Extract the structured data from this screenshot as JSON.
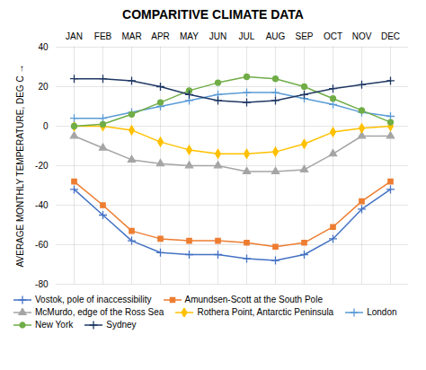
{
  "chart_data": {
    "type": "line",
    "title": "COMPARITIVE CLIMATE DATA",
    "y_label": "AVERAGE MONTHLY TEMPERATURE, DEG C",
    "categories": [
      "JAN",
      "FEB",
      "MAR",
      "APR",
      "MAY",
      "JUN",
      "JUL",
      "AUG",
      "SEP",
      "OCT",
      "NOV",
      "DEC"
    ],
    "series": [
      {
        "name": "Vostok, pole of inaccessibility",
        "color": "#4472C4",
        "marker": "plus",
        "values": [
          -32,
          -45,
          -58,
          -64,
          -65,
          -65,
          -67,
          -68,
          -65,
          -57,
          -42,
          -32
        ]
      },
      {
        "name": "Amundsen-Scott at the South Pole",
        "color": "#ED7D31",
        "marker": "square",
        "values": [
          -28,
          -40,
          -53,
          -57,
          -58,
          -58,
          -59,
          -61,
          -59,
          -51,
          -38,
          -28
        ]
      },
      {
        "name": "McMurdo, edge of the Ross Sea",
        "color": "#A5A5A5",
        "marker": "triangle",
        "values": [
          -5,
          -11,
          -17,
          -19,
          -20,
          -20,
          -23,
          -23,
          -22,
          -14,
          -5,
          -5
        ]
      },
      {
        "name": "Rothera Point, Antarctic Peninsula",
        "color": "#FFC000",
        "marker": "diamond",
        "values": [
          0,
          0,
          -2,
          -8,
          -12,
          -14,
          -14,
          -13,
          -9,
          -3,
          -1,
          0
        ]
      },
      {
        "name": "London",
        "color": "#5B9BD5",
        "marker": "plus",
        "values": [
          4,
          4,
          7,
          10,
          13,
          16,
          17,
          17,
          14,
          11,
          7,
          5
        ]
      },
      {
        "name": "New York",
        "color": "#70AD47",
        "marker": "circle",
        "values": [
          0,
          1,
          6,
          12,
          18,
          22,
          25,
          24,
          20,
          14,
          8,
          2
        ]
      },
      {
        "name": "Sydney",
        "color": "#1F3864",
        "marker": "plus",
        "values": [
          24,
          24,
          23,
          20,
          16,
          13,
          12,
          13,
          16,
          19,
          21,
          23
        ]
      }
    ],
    "ylim": [
      -80,
      40
    ],
    "yticks": [
      -80,
      -60,
      -40,
      -20,
      0,
      20,
      40
    ],
    "grid": true,
    "legend": "bottom"
  }
}
